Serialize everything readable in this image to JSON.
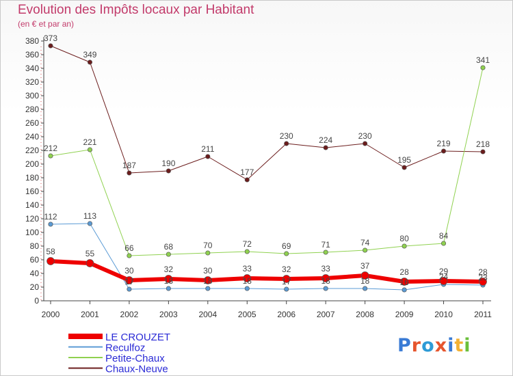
{
  "header": {
    "title": "Evolution des Impôts locaux par Habitant",
    "subtitle": "(en € et par an)"
  },
  "brand": {
    "name": "Proxiti",
    "letters": [
      "P",
      "r",
      "o",
      "x",
      "i",
      "t",
      "i"
    ],
    "colors": [
      "#3a7bd5",
      "#e6552d",
      "#2e9bd6",
      "#e6552d",
      "#3a7bd5",
      "#f2b134",
      "#6bbf3b"
    ]
  },
  "chart_data": {
    "type": "line",
    "title": "Evolution des Impôts locaux par Habitant",
    "subtitle": "(en € et par an)",
    "xlabel": "",
    "ylabel": "",
    "categories": [
      "2000",
      "2001",
      "2002",
      "2003",
      "2004",
      "2005",
      "2006",
      "2007",
      "2008",
      "2009",
      "2010",
      "2011"
    ],
    "ylim": [
      0,
      380
    ],
    "ytick_step": 20,
    "grid": false,
    "legend_position": "bottom-left",
    "series": [
      {
        "name": "Chaux-Neuve",
        "color": "#6b1c1c",
        "width": 1,
        "values": [
          373,
          349,
          187,
          190,
          211,
          177,
          230,
          224,
          230,
          195,
          219,
          218
        ],
        "labels": [
          "373",
          "349",
          "187",
          "190",
          "211",
          "177",
          "230",
          "224",
          "230",
          "195",
          "219",
          "218"
        ]
      },
      {
        "name": "Petite-Chaux",
        "color": "#8fd14f",
        "width": 1,
        "values": [
          212,
          221,
          66,
          68,
          70,
          72,
          69,
          71,
          74,
          80,
          84,
          341
        ],
        "labels": [
          "212",
          "221",
          "66",
          "68",
          "70",
          "72",
          "69",
          "71",
          "74",
          "80",
          "84",
          "341"
        ]
      },
      {
        "name": "Reculfoz",
        "color": "#5b9bd5",
        "width": 1,
        "values": [
          112,
          113,
          17,
          18,
          18,
          18,
          17,
          18,
          18,
          16,
          24,
          23
        ],
        "labels": [
          "112",
          "113",
          "17",
          "18",
          "18",
          "18",
          "17",
          "18",
          "18",
          "16",
          "24",
          "23"
        ]
      },
      {
        "name": "LE CROUZET",
        "color": "#ee0000",
        "width": 6,
        "values": [
          58,
          55,
          30,
          32,
          30,
          33,
          32,
          33,
          37,
          28,
          29,
          28
        ],
        "labels": [
          "58",
          "55",
          "30",
          "32",
          "30",
          "33",
          "32",
          "33",
          "37",
          "28",
          "29",
          "28"
        ]
      }
    ],
    "legend_order": [
      "LE CROUZET",
      "Reculfoz",
      "Petite-Chaux",
      "Chaux-Neuve"
    ]
  }
}
